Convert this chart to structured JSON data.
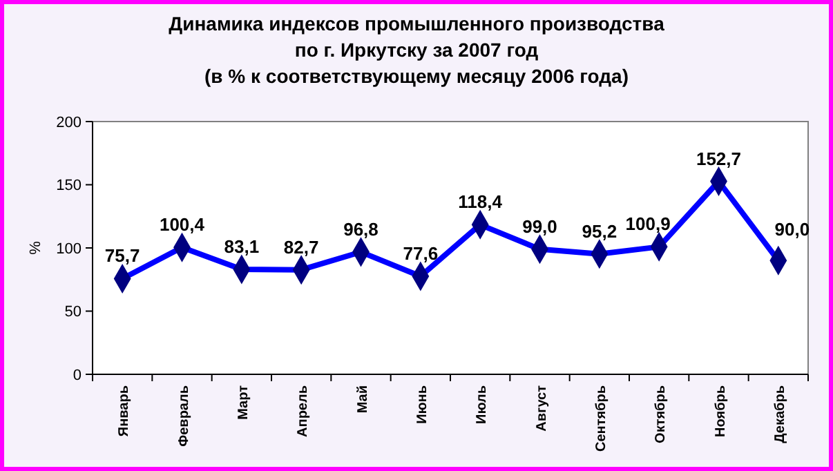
{
  "chart_data": {
    "type": "line",
    "title": "Динамика индексов промышленного производства\nпо г. Иркутску за 2007 год",
    "subtitle": "(в % к соответствующему месяцу 2006 года)",
    "ylabel": "%",
    "categories": [
      "Январь",
      "Февраль",
      "Март",
      "Апрель",
      "Май",
      "Июнь",
      "Июль",
      "Август",
      "Сентябрь",
      "Октябрь",
      "Ноябрь",
      "Декабрь"
    ],
    "series": [
      {
        "color": "#0000ff",
        "values": [
          75.7,
          100.4,
          83.1,
          82.7,
          96.8,
          77.6,
          118.4,
          99.0,
          95.2,
          100.9,
          152.7,
          90.0
        ],
        "value_labels": [
          "75,7",
          "100,4",
          "83,1",
          "82,7",
          "96,8",
          "77,6",
          "118,4",
          "99,0",
          "95,2",
          "100,9",
          "152,7",
          "90,0"
        ]
      }
    ],
    "ylim": [
      0,
      200
    ],
    "yticks": [
      0,
      50,
      100,
      150,
      200
    ],
    "grid": false,
    "marker": "diamond",
    "line_style": "solid"
  }
}
